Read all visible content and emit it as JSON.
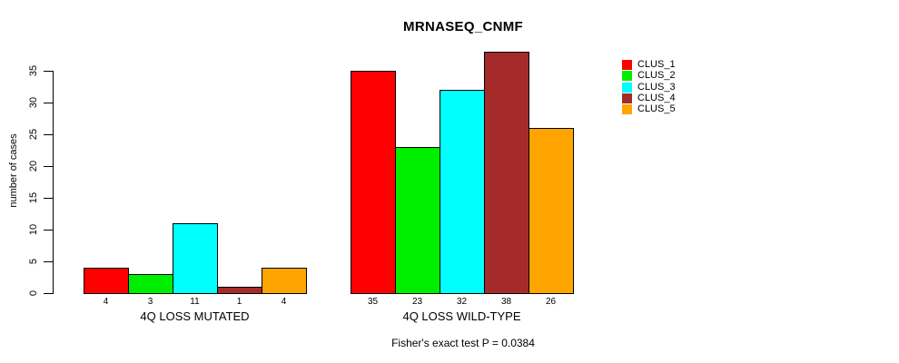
{
  "chart_data": {
    "type": "bar",
    "title": "MRNASEQ_CNMF",
    "ylabel": "number of cases",
    "caption": "Fisher's exact test P = 0.0384",
    "yticks": [
      0,
      5,
      10,
      15,
      20,
      25,
      30,
      35
    ],
    "ylim": [
      0,
      38
    ],
    "grid": false,
    "legend_position": "topright",
    "series_names": [
      "CLUS_1",
      "CLUS_2",
      "CLUS_3",
      "CLUS_4",
      "CLUS_5"
    ],
    "colors": [
      "#FF0000",
      "#00EE00",
      "#00FFFF",
      "#A52A2A",
      "#FFA500"
    ],
    "groups": [
      {
        "label": "4Q LOSS MUTATED",
        "values": [
          4,
          3,
          11,
          1,
          4
        ],
        "value_labels": [
          "4",
          "3",
          "11",
          "1",
          "4"
        ]
      },
      {
        "label": "4Q LOSS WILD-TYPE",
        "values": [
          35,
          23,
          32,
          38,
          26
        ],
        "value_labels": [
          "35",
          "23",
          "32",
          "38",
          "26"
        ]
      }
    ]
  }
}
